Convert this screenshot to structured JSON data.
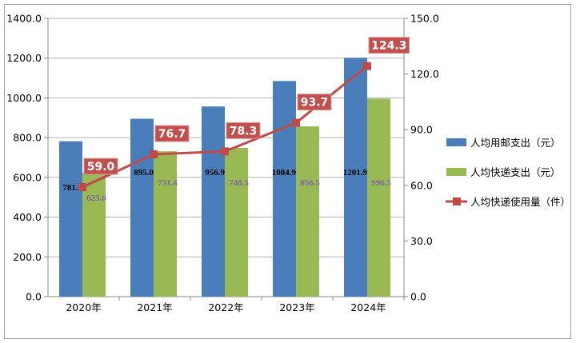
{
  "chart_data": {
    "type": "bar",
    "categories": [
      "2020年",
      "2021年",
      "2022年",
      "2023年",
      "2024年"
    ],
    "series": [
      {
        "name": "人均用邮支出（元）",
        "kind": "bar",
        "axis": "left",
        "color": "#4a7ebb",
        "label_color": "#000000",
        "values": [
          781.8,
          895.0,
          956.9,
          1084.9,
          1201.9
        ],
        "labels": [
          "781.8",
          "895.0",
          "956.9",
          "1084.9",
          "1201.9"
        ]
      },
      {
        "name": "人均快递支出（元）",
        "kind": "bar",
        "axis": "left",
        "color": "#98b954",
        "label_color": "#8064a2",
        "values": [
          623.0,
          731.4,
          748.5,
          856.5,
          996.5
        ],
        "labels": [
          "623.0",
          "731.4",
          "748.5",
          "856.5",
          "996.5"
        ]
      },
      {
        "name": "人均快递使用量（件）",
        "kind": "line",
        "axis": "right",
        "color": "#be4b48",
        "values": [
          59.0,
          76.7,
          78.3,
          93.7,
          124.3
        ],
        "labels": [
          "59.0",
          "76.7",
          "78.3",
          "93.7",
          "124.3"
        ]
      }
    ],
    "left_axis": {
      "ylim": [
        0,
        1400
      ],
      "ticks": [
        "0.0",
        "200.0",
        "400.0",
        "600.0",
        "800.0",
        "1000.0",
        "1200.0",
        "1400.0"
      ]
    },
    "right_axis": {
      "ylim": [
        0,
        150
      ],
      "ticks": [
        "0.0",
        "30.0",
        "60.0",
        "90.0",
        "120.0",
        "150.0"
      ]
    },
    "grid": true,
    "legend": "right"
  }
}
